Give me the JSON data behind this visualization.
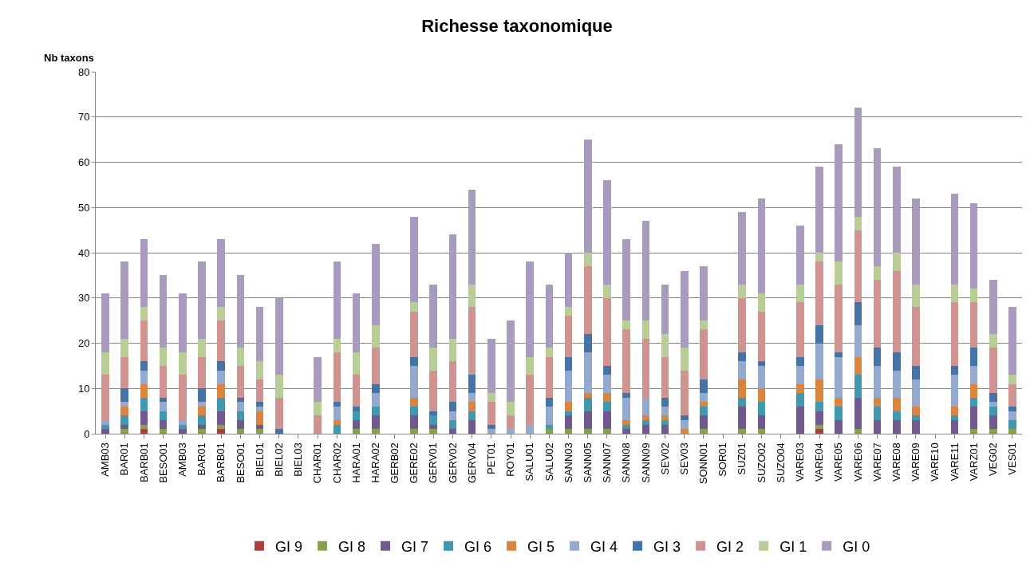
{
  "chart_data": {
    "type": "bar",
    "stacked": true,
    "title": "Richesse taxonomique",
    "ylabel": "Nb taxons",
    "categories": [
      "AMB03",
      "BAR01",
      "BARB01",
      "BESO01",
      "AMB03",
      "BAR01",
      "BARB01",
      "BESO01",
      "BIEL01",
      "BIEL02",
      "BIEL03",
      "CHAR01",
      "CHAR02",
      "HARA01",
      "HARA02",
      "GERB02",
      "GERE02",
      "GERV01",
      "GERV02",
      "GERV04",
      "PET01",
      "ROY01",
      "SALU01",
      "SALU02",
      "SANN03",
      "SANN05",
      "SANN07",
      "SANN08",
      "SANN09",
      "SEV02",
      "SEV03",
      "SONN01",
      "SOR01",
      "SUZ01",
      "SUZO02",
      "SUZO04",
      "VARE03",
      "VARE04",
      "VARE05",
      "VARE06",
      "VARE07",
      "VARE08",
      "VARE09",
      "VARE10",
      "VARE11",
      "VARZ01",
      "VEG02",
      "VES01"
    ],
    "series": [
      {
        "name": "GI 9",
        "color": "#a9403c",
        "values": [
          0,
          0,
          1,
          0,
          0,
          0,
          1,
          0,
          0,
          0,
          0,
          0,
          0,
          0,
          0,
          0,
          0,
          0,
          0,
          0,
          0,
          0,
          0,
          0,
          0,
          0,
          0,
          0,
          0,
          0,
          0,
          0,
          0,
          0,
          0,
          0,
          0,
          1,
          0,
          0,
          0,
          0,
          0,
          0,
          0,
          0,
          0,
          0
        ]
      },
      {
        "name": "GI 8",
        "color": "#87a24a",
        "values": [
          0,
          1,
          1,
          1,
          0,
          1,
          1,
          1,
          1,
          0,
          0,
          0,
          0,
          1,
          1,
          0,
          1,
          1,
          0,
          0,
          0,
          0,
          0,
          1,
          1,
          1,
          1,
          0,
          0,
          0,
          0,
          1,
          0,
          1,
          1,
          0,
          0,
          1,
          0,
          1,
          0,
          0,
          0,
          0,
          0,
          1,
          1,
          1
        ]
      },
      {
        "name": "GI 7",
        "color": "#71588f",
        "values": [
          1,
          1,
          3,
          2,
          1,
          1,
          3,
          2,
          1,
          0,
          0,
          0,
          0,
          2,
          3,
          0,
          3,
          1,
          1,
          3,
          0,
          0,
          0,
          0,
          3,
          4,
          4,
          1,
          2,
          2,
          0,
          3,
          0,
          5,
          3,
          0,
          6,
          3,
          3,
          7,
          3,
          3,
          3,
          0,
          3,
          5,
          3,
          0
        ]
      },
      {
        "name": "GI 6",
        "color": "#4198af",
        "values": [
          1,
          2,
          3,
          2,
          1,
          2,
          3,
          2,
          0,
          0,
          0,
          0,
          2,
          2,
          2,
          0,
          2,
          2,
          2,
          2,
          0,
          0,
          0,
          1,
          1,
          3,
          2,
          1,
          1,
          1,
          0,
          2,
          0,
          2,
          3,
          0,
          3,
          2,
          3,
          5,
          3,
          2,
          1,
          0,
          1,
          2,
          2,
          2
        ]
      },
      {
        "name": "GI 5",
        "color": "#db843d",
        "values": [
          0,
          2,
          3,
          0,
          0,
          2,
          3,
          0,
          3,
          0,
          0,
          0,
          1,
          0,
          0,
          0,
          2,
          0,
          0,
          2,
          0,
          0,
          0,
          0,
          2,
          1,
          2,
          1,
          1,
          1,
          1,
          1,
          0,
          4,
          3,
          0,
          2,
          5,
          2,
          4,
          2,
          3,
          2,
          0,
          2,
          3,
          0,
          0
        ]
      },
      {
        "name": "GI 4",
        "color": "#93a9cf",
        "values": [
          1,
          1,
          3,
          2,
          1,
          1,
          3,
          2,
          1,
          0,
          0,
          0,
          3,
          0,
          3,
          0,
          7,
          0,
          2,
          2,
          1,
          1,
          2,
          4,
          7,
          9,
          4,
          5,
          4,
          2,
          2,
          2,
          0,
          4,
          5,
          0,
          4,
          8,
          9,
          7,
          7,
          6,
          6,
          0,
          7,
          4,
          1,
          2
        ]
      },
      {
        "name": "GI 3",
        "color": "#4572a7",
        "values": [
          0,
          3,
          2,
          1,
          0,
          3,
          2,
          1,
          1,
          1,
          0,
          0,
          1,
          1,
          2,
          0,
          2,
          1,
          2,
          4,
          1,
          0,
          0,
          2,
          3,
          4,
          2,
          1,
          0,
          2,
          1,
          3,
          0,
          2,
          1,
          0,
          2,
          4,
          1,
          5,
          4,
          4,
          3,
          0,
          2,
          4,
          2,
          1
        ]
      },
      {
        "name": "GI 2",
        "color": "#d19392",
        "values": [
          10,
          7,
          9,
          7,
          10,
          7,
          9,
          7,
          5,
          7,
          0,
          4,
          11,
          7,
          8,
          0,
          10,
          9,
          9,
          15,
          5,
          3,
          11,
          9,
          9,
          15,
          15,
          14,
          13,
          9,
          10,
          11,
          0,
          12,
          11,
          0,
          12,
          14,
          15,
          16,
          15,
          18,
          13,
          0,
          14,
          10,
          10,
          5
        ]
      },
      {
        "name": "GI 1",
        "color": "#b9cd96",
        "values": [
          5,
          4,
          3,
          4,
          5,
          4,
          3,
          4,
          4,
          5,
          0,
          3,
          3,
          5,
          5,
          0,
          2,
          5,
          5,
          5,
          2,
          3,
          4,
          2,
          2,
          3,
          3,
          2,
          4,
          5,
          5,
          2,
          0,
          3,
          4,
          0,
          4,
          2,
          5,
          3,
          3,
          4,
          5,
          0,
          4,
          3,
          3,
          2
        ]
      },
      {
        "name": "GI 0",
        "color": "#a99bbd",
        "values": [
          13,
          17,
          15,
          16,
          13,
          17,
          15,
          16,
          12,
          17,
          0,
          10,
          17,
          13,
          18,
          0,
          19,
          14,
          23,
          21,
          12,
          18,
          21,
          14,
          12,
          25,
          23,
          18,
          22,
          11,
          17,
          12,
          0,
          16,
          21,
          0,
          13,
          19,
          26,
          24,
          26,
          19,
          19,
          0,
          20,
          19,
          12,
          15
        ]
      }
    ],
    "ylim": [
      0,
      80
    ],
    "yticks": [
      0,
      10,
      20,
      30,
      40,
      50,
      60,
      70,
      80
    ],
    "grid": "y",
    "legend": "bottom"
  }
}
